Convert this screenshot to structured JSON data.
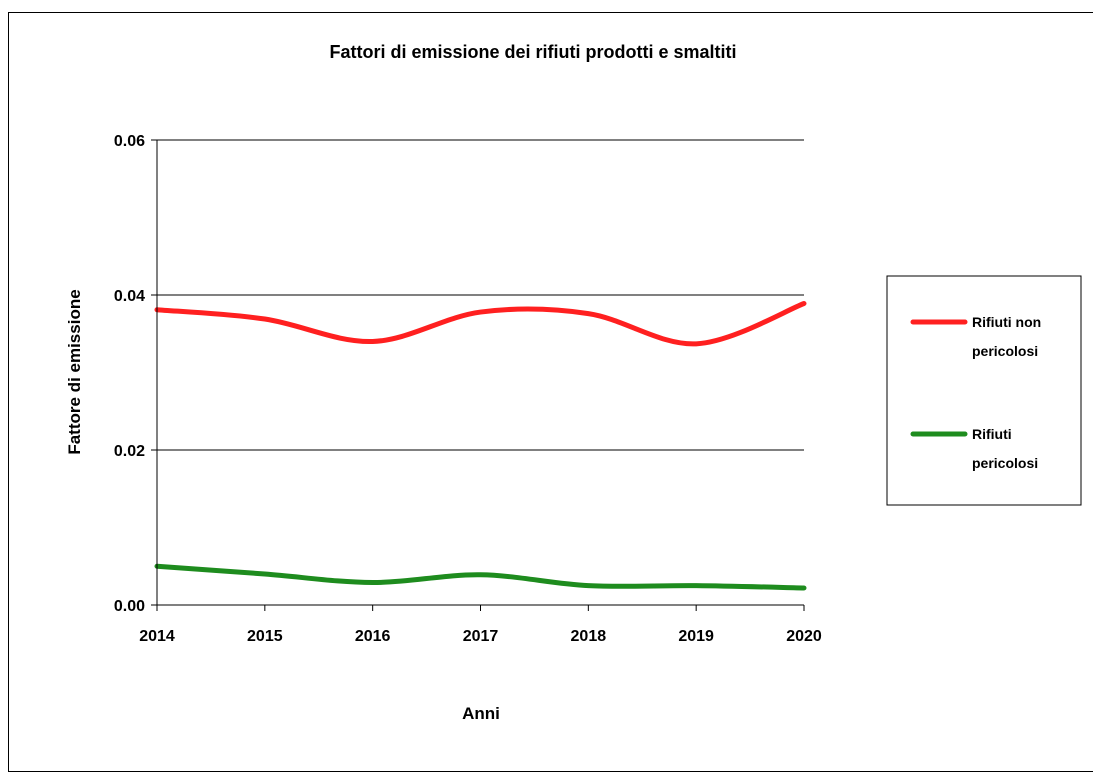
{
  "chart_data": {
    "type": "line",
    "title": "Fattori di emissione dei rifiuti prodotti e smaltiti",
    "xlabel": "Anni",
    "ylabel": "Fattore di emissione",
    "x": [
      "2014",
      "2015",
      "2016",
      "2017",
      "2018",
      "2019",
      "2020"
    ],
    "ylim": [
      0,
      0.06
    ],
    "yticks": [
      "0.00",
      "0.02",
      "0.04",
      "0.06"
    ],
    "grid": true,
    "legend_position": "right",
    "smoothed": true,
    "series": [
      {
        "name_lines": [
          "Rifiuti non",
          "pericolosi"
        ],
        "color": "#ff2020",
        "values": [
          0.0381,
          0.0369,
          0.034,
          0.0378,
          0.0376,
          0.0337,
          0.0389
        ]
      },
      {
        "name_lines": [
          "Rifiuti",
          "pericolosi"
        ],
        "color": "#1e8c1e",
        "values": [
          0.005,
          0.004,
          0.0029,
          0.0039,
          0.0025,
          0.0025,
          0.0022
        ]
      }
    ]
  }
}
